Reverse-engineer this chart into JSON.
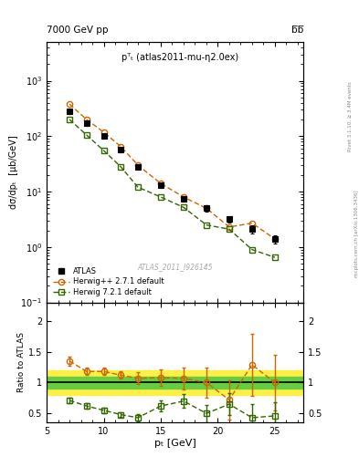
{
  "title_left": "7000 GeV pp",
  "title_right": "b̅b̅",
  "annotation": "pᵀₜ (atlas2011-mu-η2.0ex)",
  "watermark": "ATLAS_2011_I926145",
  "right_label_top": "Rivet 3.1.10, ≥ 3.4M events",
  "right_label_bot": "mcplots.cern.ch [arXiv:1306.3436]",
  "ylabel_main": "dσ/dpₜ  [μb/GeV]",
  "ylabel_ratio": "Ratio to ATLAS",
  "xlabel": "pₜ [GeV]",
  "xlim": [
    6.5,
    27.5
  ],
  "ylim_main": [
    0.1,
    5000
  ],
  "ylim_ratio": [
    0.35,
    2.3
  ],
  "atlas_x": [
    7.0,
    8.5,
    10.0,
    11.5,
    13.0,
    15.0,
    17.0,
    19.0,
    21.0,
    23.0,
    25.0
  ],
  "atlas_y": [
    280,
    170,
    100,
    58,
    28,
    13,
    7.5,
    5.0,
    3.2,
    2.1,
    1.4
  ],
  "atlas_yerr_lo": [
    28,
    17,
    10,
    6,
    3,
    1.5,
    0.9,
    0.7,
    0.45,
    0.35,
    0.25
  ],
  "atlas_yerr_hi": [
    28,
    17,
    10,
    6,
    3,
    1.5,
    0.9,
    0.7,
    0.45,
    0.35,
    0.25
  ],
  "herwig_pp_x": [
    7.0,
    8.5,
    10.0,
    11.5,
    13.0,
    15.0,
    17.0,
    19.0,
    21.0,
    23.0,
    25.0
  ],
  "herwig_pp_y": [
    380,
    200,
    118,
    65,
    30,
    14,
    8.0,
    5.0,
    2.3,
    2.7,
    1.4
  ],
  "herwig_7_x": [
    7.0,
    8.5,
    10.0,
    11.5,
    13.0,
    15.0,
    17.0,
    19.0,
    21.0,
    23.0,
    25.0
  ],
  "herwig_7_y": [
    200,
    105,
    55,
    28,
    12,
    8.0,
    5.2,
    2.5,
    2.1,
    0.9,
    0.65
  ],
  "ratio_herwig_pp": [
    1.35,
    1.18,
    1.18,
    1.12,
    1.07,
    1.08,
    1.07,
    1.0,
    0.72,
    1.29,
    1.0
  ],
  "ratio_herwig_pp_err_lo": [
    0.07,
    0.06,
    0.06,
    0.06,
    0.1,
    0.14,
    0.18,
    0.25,
    0.32,
    0.5,
    0.45
  ],
  "ratio_herwig_pp_err_hi": [
    0.07,
    0.06,
    0.06,
    0.06,
    0.1,
    0.14,
    0.18,
    0.25,
    0.32,
    0.5,
    0.45
  ],
  "ratio_herwig_7": [
    0.71,
    0.62,
    0.55,
    0.48,
    0.43,
    0.62,
    0.7,
    0.5,
    0.65,
    0.43,
    0.46
  ],
  "ratio_herwig_7_err_lo": [
    0.04,
    0.04,
    0.04,
    0.04,
    0.06,
    0.09,
    0.11,
    0.14,
    0.18,
    0.22,
    0.22
  ],
  "ratio_herwig_7_err_hi": [
    0.04,
    0.04,
    0.04,
    0.04,
    0.06,
    0.09,
    0.11,
    0.14,
    0.18,
    0.22,
    0.22
  ],
  "band_green_lo": 0.9,
  "band_green_hi": 1.1,
  "band_yellow_lo": 0.8,
  "band_yellow_hi": 1.2,
  "color_atlas": "#000000",
  "color_herwig_pp": "#cc6600",
  "color_herwig_7": "#336600",
  "color_band_green": "#66cc44",
  "color_band_yellow": "#ffee44",
  "bg_color": "#ffffff"
}
